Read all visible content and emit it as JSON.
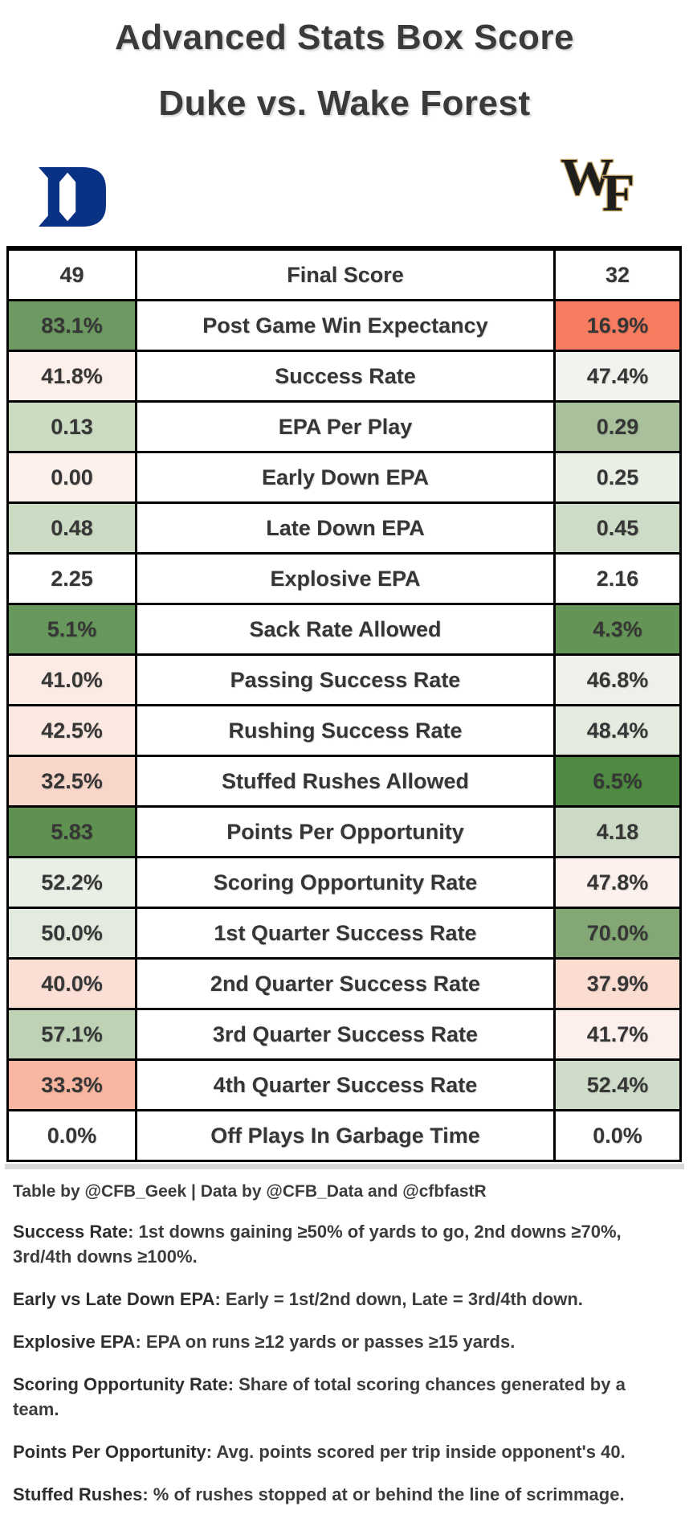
{
  "header": {
    "title_line1": "Advanced Stats Box Score",
    "title_line2": "Duke vs. Wake Forest"
  },
  "teams": {
    "duke": {
      "name": "Duke",
      "logo": "duke-block-d-icon",
      "logo_color": "#0a3284"
    },
    "wake_forest": {
      "name": "Wake Forest",
      "logo": "wf-monogram-icon",
      "logo_text": "WF",
      "logo_fill": "#1e1e1c",
      "logo_outline": "#c8a35f"
    }
  },
  "chart_data": {
    "type": "table",
    "title": "Advanced Stats Box Score",
    "subtitle": "Duke vs. Wake Forest",
    "series": [
      {
        "name": "Duke",
        "side": "left"
      },
      {
        "name": "Wake Forest",
        "side": "right"
      }
    ],
    "rows": [
      {
        "stat": "Final Score",
        "duke": {
          "value": "49",
          "bg": "#ffffff",
          "fg": "dark"
        },
        "wf": {
          "value": "32",
          "bg": "#ffffff",
          "fg": "dark"
        }
      },
      {
        "stat": "Post Game Win Expectancy",
        "duke": {
          "value": "83.1%",
          "bg": "#6d9a62",
          "fg": "light"
        },
        "wf": {
          "value": "16.9%",
          "bg": "#f87c5f",
          "fg": "dark"
        }
      },
      {
        "stat": "Success Rate",
        "duke": {
          "value": "41.8%",
          "bg": "#fdefe9",
          "fg": "dark"
        },
        "wf": {
          "value": "47.4%",
          "bg": "#f0f3ee",
          "fg": "dark"
        }
      },
      {
        "stat": "EPA Per Play",
        "duke": {
          "value": "0.13",
          "bg": "#cbdcc2",
          "fg": "dark"
        },
        "wf": {
          "value": "0.29",
          "bg": "#a8c19c",
          "fg": "dark"
        }
      },
      {
        "stat": "Early Down EPA",
        "duke": {
          "value": "0.00",
          "bg": "#fdf1ec",
          "fg": "dark"
        },
        "wf": {
          "value": "0.25",
          "bg": "#e9efe4",
          "fg": "dark"
        }
      },
      {
        "stat": "Late Down EPA",
        "duke": {
          "value": "0.48",
          "bg": "#ccdbc3",
          "fg": "dark"
        },
        "wf": {
          "value": "0.45",
          "bg": "#cddcc6",
          "fg": "dark"
        }
      },
      {
        "stat": "Explosive EPA",
        "duke": {
          "value": "2.25",
          "bg": "#ffffff",
          "fg": "dark"
        },
        "wf": {
          "value": "2.16",
          "bg": "#ffffff",
          "fg": "dark"
        }
      },
      {
        "stat": "Sack Rate Allowed",
        "duke": {
          "value": "5.1%",
          "bg": "#67975a",
          "fg": "light"
        },
        "wf": {
          "value": "4.3%",
          "bg": "#649556",
          "fg": "light"
        }
      },
      {
        "stat": "Passing Success Rate",
        "duke": {
          "value": "41.0%",
          "bg": "#fcebe4",
          "fg": "dark"
        },
        "wf": {
          "value": "46.8%",
          "bg": "#edf1e9",
          "fg": "dark"
        }
      },
      {
        "stat": "Rushing Success Rate",
        "duke": {
          "value": "42.5%",
          "bg": "#fce9e1",
          "fg": "dark"
        },
        "wf": {
          "value": "48.4%",
          "bg": "#e4ecdf",
          "fg": "dark"
        }
      },
      {
        "stat": "Stuffed Rushes Allowed",
        "duke": {
          "value": "32.5%",
          "bg": "#f9d6ca",
          "fg": "dark"
        },
        "wf": {
          "value": "6.5%",
          "bg": "#4e8a41",
          "fg": "light"
        }
      },
      {
        "stat": "Points Per Opportunity",
        "duke": {
          "value": "5.83",
          "bg": "#5f9150",
          "fg": "light"
        },
        "wf": {
          "value": "4.18",
          "bg": "#ccd9c5",
          "fg": "dark"
        }
      },
      {
        "stat": "Scoring Opportunity Rate",
        "duke": {
          "value": "52.2%",
          "bg": "#e9efe5",
          "fg": "dark"
        },
        "wf": {
          "value": "47.8%",
          "bg": "#fdf1ed",
          "fg": "dark"
        }
      },
      {
        "stat": "1st Quarter Success Rate",
        "duke": {
          "value": "50.0%",
          "bg": "#e2ebde",
          "fg": "dark"
        },
        "wf": {
          "value": "70.0%",
          "bg": "#83a876",
          "fg": "light"
        }
      },
      {
        "stat": "2nd Quarter Success Rate",
        "duke": {
          "value": "40.0%",
          "bg": "#fbdfd4",
          "fg": "dark"
        },
        "wf": {
          "value": "37.9%",
          "bg": "#fbdcd1",
          "fg": "dark"
        }
      },
      {
        "stat": "3rd Quarter Success Rate",
        "duke": {
          "value": "57.1%",
          "bg": "#bed2b6",
          "fg": "dark"
        },
        "wf": {
          "value": "41.7%",
          "bg": "#fdf0ec",
          "fg": "dark"
        }
      },
      {
        "stat": "4th Quarter Success Rate",
        "duke": {
          "value": "33.3%",
          "bg": "#f9b7a1",
          "fg": "dark"
        },
        "wf": {
          "value": "52.4%",
          "bg": "#cfdcc9",
          "fg": "dark"
        }
      },
      {
        "stat": "Off Plays In Garbage Time",
        "duke": {
          "value": "0.0%",
          "bg": "#ffffff",
          "fg": "dark"
        },
        "wf": {
          "value": "0.0%",
          "bg": "#ffffff",
          "fg": "dark"
        }
      }
    ]
  },
  "footer": {
    "credit": "Table by @CFB_Geek | Data by @CFB_Data and @cfbfastR",
    "notes": [
      {
        "term": "Success Rate",
        "definition": "1st downs gaining ≥50% of yards to go, 2nd downs ≥70%, 3rd/4th downs ≥100%."
      },
      {
        "term": "Early vs Late Down EPA",
        "definition": "Early = 1st/2nd down, Late = 3rd/4th down."
      },
      {
        "term": "Explosive EPA",
        "definition": "EPA on runs ≥12 yards or passes ≥15 yards."
      },
      {
        "term": "Scoring Opportunity Rate",
        "definition": "Share of total scoring chances generated by a team."
      },
      {
        "term": "Points Per Opportunity",
        "definition": "Avg. points scored per trip inside opponent's 40."
      },
      {
        "term": "Stuffed Rushes",
        "definition": "% of rushes stopped at or behind the line of scrimmage."
      }
    ]
  }
}
